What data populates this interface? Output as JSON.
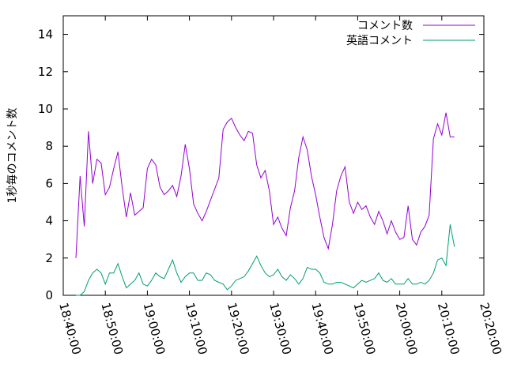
{
  "chart_data": {
    "type": "line",
    "ylabel": "1秒毎のコメント数",
    "xlabel": "",
    "ylim": [
      0,
      15
    ],
    "yticks": [
      0,
      2,
      4,
      6,
      8,
      10,
      12,
      14
    ],
    "xlim": [
      "18:40:00",
      "20:20:00"
    ],
    "xticks": [
      "18:40:00",
      "18:50:00",
      "19:00:00",
      "19:10:00",
      "19:20:00",
      "19:30:00",
      "19:40:00",
      "19:50:00",
      "20:00:00",
      "20:10:00",
      "20:20:00"
    ],
    "legend_position": "top-right",
    "series": [
      {
        "name": "コメント数",
        "color": "#9400d3",
        "x": [
          "18:43:00",
          "18:44:00",
          "18:45:00",
          "18:46:00",
          "18:47:00",
          "18:48:00",
          "18:49:00",
          "18:50:00",
          "18:51:00",
          "18:52:00",
          "18:53:00",
          "18:54:00",
          "18:55:00",
          "18:56:00",
          "18:57:00",
          "18:58:00",
          "18:59:00",
          "19:00:00",
          "19:01:00",
          "19:02:00",
          "19:03:00",
          "19:04:00",
          "19:05:00",
          "19:06:00",
          "19:07:00",
          "19:08:00",
          "19:09:00",
          "19:10:00",
          "19:11:00",
          "19:12:00",
          "19:13:00",
          "19:14:00",
          "19:15:00",
          "19:16:00",
          "19:17:00",
          "19:18:00",
          "19:19:00",
          "19:20:00",
          "19:21:00",
          "19:22:00",
          "19:23:00",
          "19:24:00",
          "19:25:00",
          "19:26:00",
          "19:27:00",
          "19:28:00",
          "19:29:00",
          "19:30:00",
          "19:31:00",
          "19:32:00",
          "19:33:00",
          "19:34:00",
          "19:35:00",
          "19:36:00",
          "19:37:00",
          "19:38:00",
          "19:39:00",
          "19:40:00",
          "19:41:00",
          "19:42:00",
          "19:43:00",
          "19:44:00",
          "19:45:00",
          "19:46:00",
          "19:47:00",
          "19:48:00",
          "19:49:00",
          "19:50:00",
          "19:51:00",
          "19:52:00",
          "19:53:00",
          "19:54:00",
          "19:55:00",
          "19:56:00",
          "19:57:00",
          "19:58:00",
          "19:59:00",
          "20:00:00",
          "20:01:00",
          "20:02:00",
          "20:03:00",
          "20:04:00",
          "20:05:00",
          "20:06:00",
          "20:07:00",
          "20:08:00",
          "20:09:00",
          "20:10:00",
          "20:11:00",
          "20:12:00",
          "20:13:00"
        ],
        "y": [
          2.0,
          6.4,
          3.7,
          8.8,
          6.0,
          7.3,
          7.1,
          5.4,
          5.8,
          6.8,
          7.7,
          5.8,
          4.2,
          5.5,
          4.3,
          4.5,
          4.7,
          6.8,
          7.3,
          7.0,
          5.8,
          5.4,
          5.6,
          5.9,
          5.3,
          6.4,
          8.1,
          6.8,
          4.9,
          4.4,
          4.0,
          4.5,
          5.1,
          5.7,
          6.3,
          8.9,
          9.3,
          9.5,
          9.0,
          8.6,
          8.3,
          8.8,
          8.7,
          7.0,
          6.3,
          6.7,
          5.6,
          3.8,
          4.2,
          3.6,
          3.2,
          4.7,
          5.6,
          7.4,
          8.5,
          7.8,
          6.4,
          5.4,
          4.2,
          3.1,
          2.5,
          3.8,
          5.6,
          6.4,
          6.9,
          5.0,
          4.4,
          5.0,
          4.6,
          4.8,
          4.2,
          3.8,
          4.5,
          4.0,
          3.3,
          4.0,
          3.4,
          3.0,
          3.1,
          4.8,
          3.0,
          2.7,
          3.4,
          3.7,
          4.3,
          8.4,
          9.2,
          8.6,
          9.8,
          8.5,
          8.5
        ]
      },
      {
        "name": "英語コメント",
        "color": "#009e73",
        "x": [
          "18:43:00",
          "18:44:00",
          "18:45:00",
          "18:46:00",
          "18:47:00",
          "18:48:00",
          "18:49:00",
          "18:50:00",
          "18:51:00",
          "18:52:00",
          "18:53:00",
          "18:54:00",
          "18:55:00",
          "18:56:00",
          "18:57:00",
          "18:58:00",
          "18:59:00",
          "19:00:00",
          "19:01:00",
          "19:02:00",
          "19:03:00",
          "19:04:00",
          "19:05:00",
          "19:06:00",
          "19:07:00",
          "19:08:00",
          "19:09:00",
          "19:10:00",
          "19:11:00",
          "19:12:00",
          "19:13:00",
          "19:14:00",
          "19:15:00",
          "19:16:00",
          "19:17:00",
          "19:18:00",
          "19:19:00",
          "19:20:00",
          "19:21:00",
          "19:22:00",
          "19:23:00",
          "19:24:00",
          "19:25:00",
          "19:26:00",
          "19:27:00",
          "19:28:00",
          "19:29:00",
          "19:30:00",
          "19:31:00",
          "19:32:00",
          "19:33:00",
          "19:34:00",
          "19:35:00",
          "19:36:00",
          "19:37:00",
          "19:38:00",
          "19:39:00",
          "19:40:00",
          "19:41:00",
          "19:42:00",
          "19:43:00",
          "19:44:00",
          "19:45:00",
          "19:46:00",
          "19:47:00",
          "19:48:00",
          "19:49:00",
          "19:50:00",
          "19:51:00",
          "19:52:00",
          "19:53:00",
          "19:54:00",
          "19:55:00",
          "19:56:00",
          "19:57:00",
          "19:58:00",
          "19:59:00",
          "20:00:00",
          "20:01:00",
          "20:02:00",
          "20:03:00",
          "20:04:00",
          "20:05:00",
          "20:06:00",
          "20:07:00",
          "20:08:00",
          "20:09:00",
          "20:10:00",
          "20:11:00",
          "20:12:00",
          "20:13:00"
        ],
        "y": [
          0.0,
          0.0,
          0.2,
          0.8,
          1.2,
          1.4,
          1.2,
          0.6,
          1.2,
          1.2,
          1.7,
          1.0,
          0.4,
          0.6,
          0.8,
          1.2,
          0.6,
          0.5,
          0.8,
          1.2,
          1.0,
          0.9,
          1.4,
          1.9,
          1.2,
          0.7,
          1.0,
          1.2,
          1.2,
          0.8,
          0.8,
          1.2,
          1.1,
          0.8,
          0.7,
          0.6,
          0.3,
          0.5,
          0.8,
          0.9,
          1.0,
          1.3,
          1.7,
          2.1,
          1.6,
          1.2,
          1.0,
          1.1,
          1.4,
          1.0,
          0.8,
          1.1,
          0.9,
          0.6,
          0.9,
          1.5,
          1.4,
          1.4,
          1.2,
          0.7,
          0.6,
          0.6,
          0.7,
          0.7,
          0.6,
          0.5,
          0.4,
          0.6,
          0.8,
          0.7,
          0.8,
          0.9,
          1.2,
          0.8,
          0.7,
          0.9,
          0.6,
          0.6,
          0.6,
          0.9,
          0.6,
          0.6,
          0.7,
          0.6,
          0.8,
          1.2,
          1.9,
          2.0,
          1.6,
          3.8,
          2.6
        ]
      }
    ]
  }
}
